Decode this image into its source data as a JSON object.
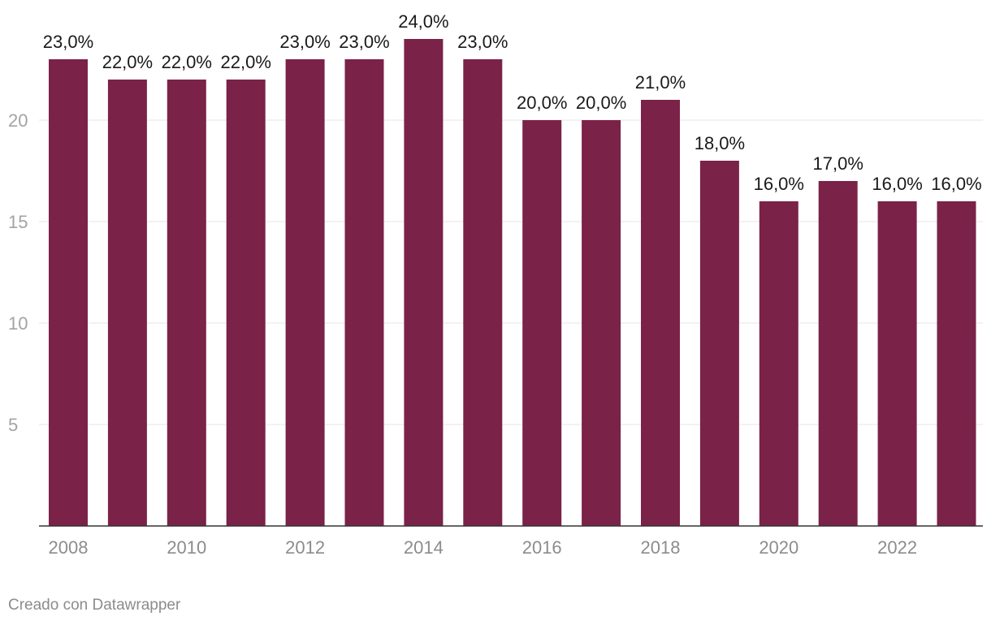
{
  "chart_data": {
    "type": "bar",
    "categories": [
      "2008",
      "2009",
      "2010",
      "2011",
      "2012",
      "2013",
      "2014",
      "2015",
      "2016",
      "2017",
      "2018",
      "2019",
      "2020",
      "2021",
      "2022",
      "2023"
    ],
    "values": [
      23,
      22,
      22,
      22,
      23,
      23,
      24,
      23,
      20,
      20,
      21,
      18,
      16,
      17,
      16,
      16
    ],
    "data_labels": [
      "23,0%",
      "22,0%",
      "22,0%",
      "22,0%",
      "23,0%",
      "23,0%",
      "24,0%",
      "23,0%",
      "20,0%",
      "20,0%",
      "21,0%",
      "18,0%",
      "16,0%",
      "17,0%",
      "16,0%",
      "16,0%"
    ],
    "x_tick_labels": [
      "2008",
      "2010",
      "2012",
      "2014",
      "2016",
      "2018",
      "2020",
      "2022"
    ],
    "y_ticks": [
      5,
      10,
      15,
      20
    ],
    "ylim": [
      0,
      25
    ],
    "grid": true,
    "bar_color": "#7b2249",
    "title": "",
    "xlabel": "",
    "ylabel": ""
  },
  "footer": {
    "credit": "Creado con Datawrapper"
  }
}
